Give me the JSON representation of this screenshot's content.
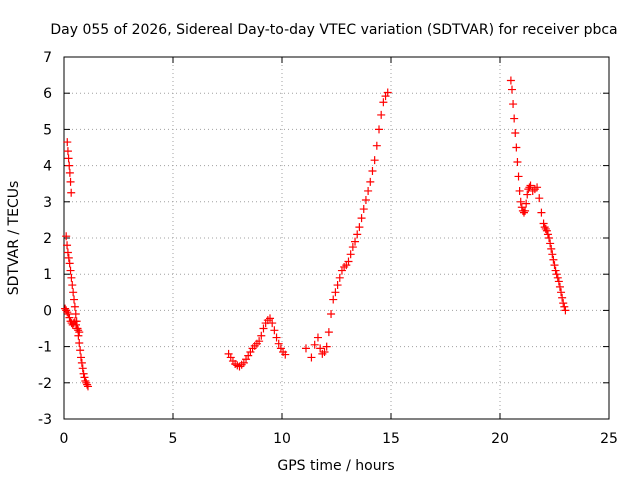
{
  "chart_data": {
    "type": "scatter",
    "title": "Day 055 of 2026, Sidereal Day-to-day VTEC variation (SDTVAR) for receiver pbca",
    "xlabel": "GPS time / hours",
    "ylabel": "SDTVAR / TECUs",
    "xlim": [
      0,
      25
    ],
    "ylim": [
      -3,
      7
    ],
    "xticks": [
      "0",
      "5",
      "10",
      "15",
      "20",
      "25"
    ],
    "yticks": [
      "-3",
      "-2",
      "-1",
      "0",
      "1",
      "2",
      "3",
      "4",
      "5",
      "6",
      "7"
    ],
    "grid": true,
    "marker": "+",
    "series": [
      {
        "name": "SDTVAR",
        "color": "#ff0000",
        "x": [
          0.15,
          0.18,
          0.21,
          0.24,
          0.27,
          0.3,
          0.33,
          0.1,
          0.14,
          0.18,
          0.22,
          0.26,
          0.3,
          0.34,
          0.38,
          0.42,
          0.46,
          0.5,
          0.54,
          0.58,
          0.62,
          0.66,
          0.7,
          0.74,
          0.78,
          0.82,
          0.86,
          0.9,
          0.94,
          0.98,
          1.02,
          1.06,
          1.1,
          0.05,
          0.1,
          0.15,
          0.2,
          0.25,
          0.3,
          0.35,
          0.4,
          0.45,
          0.5,
          0.55,
          0.6,
          0.65,
          0.7,
          7.55,
          7.65,
          7.75,
          7.85,
          7.95,
          8.05,
          8.15,
          8.25,
          8.35,
          8.45,
          8.55,
          8.65,
          8.75,
          8.85,
          8.95,
          9.05,
          9.15,
          9.25,
          9.35,
          9.45,
          9.55,
          9.65,
          9.75,
          9.85,
          9.95,
          10.05,
          10.15,
          11.1,
          11.35,
          11.5,
          11.65,
          11.75,
          11.85,
          11.95,
          12.05,
          12.15,
          12.25,
          12.35,
          12.45,
          12.55,
          12.65,
          12.75,
          12.85,
          12.95,
          13.05,
          13.15,
          13.25,
          13.35,
          13.45,
          13.55,
          13.65,
          13.75,
          13.85,
          13.95,
          14.05,
          14.15,
          14.25,
          14.35,
          14.45,
          14.55,
          14.65,
          14.75,
          14.85,
          20.5,
          20.55,
          20.6,
          20.65,
          20.7,
          20.75,
          20.8,
          20.85,
          20.9,
          20.95,
          21.0,
          21.05,
          21.1,
          21.15,
          21.2,
          21.25,
          21.3,
          21.35,
          21.4,
          21.5,
          21.6,
          21.7,
          21.8,
          21.9,
          22.0,
          22.05,
          22.1,
          22.15,
          22.2,
          22.25,
          22.3,
          22.35,
          22.4,
          22.45,
          22.5,
          22.55,
          22.6,
          22.65,
          22.7,
          22.75,
          22.8,
          22.85,
          22.9,
          22.95,
          23.0
        ],
        "y": [
          4.65,
          4.4,
          4.2,
          4.0,
          3.8,
          3.55,
          3.25,
          2.05,
          1.8,
          1.6,
          1.45,
          1.3,
          1.1,
          0.9,
          0.7,
          0.5,
          0.3,
          0.1,
          -0.1,
          -0.3,
          -0.5,
          -0.7,
          -0.9,
          -1.1,
          -1.3,
          -1.45,
          -1.6,
          -1.75,
          -1.85,
          -1.95,
          -2.0,
          -2.05,
          -2.1,
          0.05,
          0.0,
          -0.05,
          -0.1,
          -0.2,
          -0.3,
          -0.35,
          -0.4,
          -0.35,
          -0.3,
          -0.4,
          -0.5,
          -0.55,
          -0.6,
          -1.2,
          -1.3,
          -1.4,
          -1.48,
          -1.52,
          -1.55,
          -1.5,
          -1.45,
          -1.35,
          -1.25,
          -1.15,
          -1.05,
          -0.98,
          -0.92,
          -0.85,
          -0.7,
          -0.5,
          -0.35,
          -0.27,
          -0.22,
          -0.35,
          -0.55,
          -0.75,
          -0.92,
          -1.05,
          -1.15,
          -1.22,
          -1.05,
          -1.3,
          -0.95,
          -0.75,
          -1.05,
          -1.2,
          -1.15,
          -1.0,
          -0.6,
          -0.1,
          0.3,
          0.5,
          0.7,
          0.9,
          1.1,
          1.2,
          1.25,
          1.35,
          1.55,
          1.75,
          1.9,
          2.1,
          2.3,
          2.55,
          2.8,
          3.05,
          3.3,
          3.55,
          3.85,
          4.15,
          4.55,
          5.0,
          5.4,
          5.75,
          5.92,
          6.02,
          6.35,
          6.1,
          5.7,
          5.3,
          4.9,
          4.5,
          4.1,
          3.7,
          3.3,
          3.0,
          2.85,
          2.75,
          2.7,
          2.75,
          2.95,
          3.2,
          3.35,
          3.4,
          3.45,
          3.3,
          3.35,
          3.4,
          3.1,
          2.7,
          2.4,
          2.3,
          2.25,
          2.2,
          2.1,
          2.0,
          1.85,
          1.7,
          1.55,
          1.4,
          1.25,
          1.1,
          1.0,
          0.9,
          0.8,
          0.65,
          0.5,
          0.35,
          0.2,
          0.1,
          0.0
        ]
      }
    ]
  }
}
